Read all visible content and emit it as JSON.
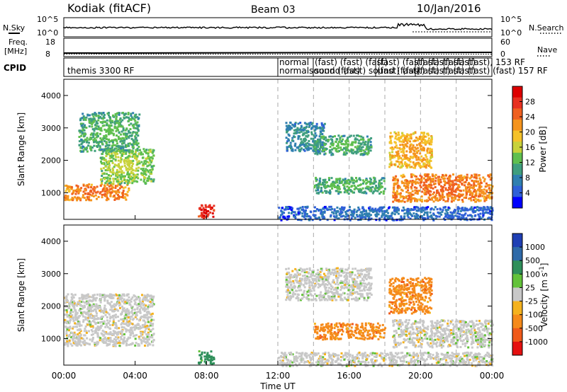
{
  "header": {
    "station": "Kodiak (fitACF)",
    "beam": "Beam 03",
    "date": "10/Jan/2016"
  },
  "noise_panel": {
    "left_label": "N.Sky",
    "right_label": "N.Search",
    "left_ticks": [
      "10^5",
      "10^0"
    ],
    "right_ticks": [
      "10^5",
      "10^0"
    ]
  },
  "freq_panel": {
    "left_label_lines": [
      "Freq.",
      "[MHz]"
    ],
    "right_label": "Nave",
    "left_ticks": [
      "18",
      "8"
    ],
    "right_ticks": [
      "60",
      "0"
    ]
  },
  "cpid_panel": {
    "label": "CPID",
    "segments": [
      {
        "text": "themis 3300 RF"
      },
      {
        "text": "normal"
      },
      {
        "text": "normalsound (fast)"
      },
      {
        "text": "(fast) (fast) (fast)"
      },
      {
        "text": "sound (fast) sound (fast)"
      },
      {
        "text": "(fast) (fast) (fast) (fast)"
      },
      {
        "text": "(fast) (fast) (fast) (fast)"
      },
      {
        "text": "(fast) (fast) (fast), 153 RF"
      },
      {
        "text": "(fast) (fast) (fast) (fast) 157 RF"
      }
    ]
  },
  "time_axis": {
    "label": "Time UT",
    "ticks": [
      "00:00",
      "04:00",
      "08:00",
      "12:00",
      "16:00",
      "20:00",
      "00:00"
    ]
  },
  "chart_data": [
    {
      "type": "heatmap",
      "title": "Power",
      "xlabel": "Time UT",
      "ylabel": "Slant Range [km]",
      "x_ticks": [
        "00:00",
        "04:00",
        "08:00",
        "12:00",
        "16:00",
        "20:00",
        "00:00"
      ],
      "y_ticks": [
        1000,
        2000,
        3000,
        4000
      ],
      "xlim_hours": [
        0,
        24
      ],
      "ylim_km": [
        180,
        4500
      ],
      "colorbar": {
        "label": "Power [dB]",
        "ticks": [
          "4",
          "8",
          "12",
          "16",
          "20",
          "24",
          "28"
        ],
        "colors": [
          "#0000ff",
          "#2e5fd8",
          "#2f7fb0",
          "#3f9e7e",
          "#5fbf4f",
          "#c8d23a",
          "#f5c22a",
          "#f5941d",
          "#f06020",
          "#e83020",
          "#dd0000"
        ]
      },
      "features": [
        {
          "hours": [
            0.0,
            3.6
          ],
          "range_km": [
            800,
            1300
          ],
          "power_db": 24
        },
        {
          "hours": [
            2.0,
            5.0
          ],
          "range_km": [
            1300,
            2400
          ],
          "power_db": 14
        },
        {
          "hours": [
            0.8,
            4.2
          ],
          "range_km": [
            2300,
            3500
          ],
          "power_db": 12
        },
        {
          "hours": [
            7.5,
            8.4
          ],
          "range_km": [
            250,
            650
          ],
          "power_db": 28
        },
        {
          "hours": [
            12.4,
            14.6
          ],
          "range_km": [
            2300,
            3200
          ],
          "power_db": 10
        },
        {
          "hours": [
            14.0,
            18.0
          ],
          "range_km": [
            1000,
            1500
          ],
          "power_db": 12
        },
        {
          "hours": [
            14.0,
            17.2
          ],
          "range_km": [
            2200,
            2800
          ],
          "power_db": 12
        },
        {
          "hours": [
            18.2,
            20.6
          ],
          "range_km": [
            1800,
            2900
          ],
          "power_db": 20
        },
        {
          "hours": [
            18.4,
            24.0
          ],
          "range_km": [
            750,
            1600
          ],
          "power_db": 24
        },
        {
          "hours": [
            12.0,
            24.0
          ],
          "range_km": [
            180,
            600
          ],
          "power_db": 8
        }
      ]
    },
    {
      "type": "heatmap",
      "title": "Velocity",
      "xlabel": "Time UT",
      "ylabel": "Slant Range [km]",
      "x_ticks": [
        "00:00",
        "04:00",
        "08:00",
        "12:00",
        "16:00",
        "20:00",
        "00:00"
      ],
      "y_ticks": [
        1000,
        2000,
        3000,
        4000
      ],
      "xlim_hours": [
        0,
        24
      ],
      "ylim_km": [
        180,
        4500
      ],
      "colorbar": {
        "label": "Velocity [m s^-1]",
        "ticks": [
          "1000",
          "500",
          "100",
          "25",
          "-25",
          "-100",
          "-500",
          "-1000"
        ],
        "colors": [
          "#1f3fb4",
          "#2f6aa8",
          "#2f8f5a",
          "#63c23a",
          "#c8c8c8",
          "#f5b21e",
          "#f58a1a",
          "#f05a1a",
          "#e51010"
        ]
      },
      "features": [
        {
          "hours": [
            0.0,
            5.0
          ],
          "range_km": [
            800,
            2400
          ],
          "velocity_ms": 0
        },
        {
          "hours": [
            7.5,
            8.4
          ],
          "range_km": [
            250,
            650
          ],
          "velocity_ms": 100
        },
        {
          "hours": [
            12.4,
            17.2
          ],
          "range_km": [
            2200,
            3200
          ],
          "velocity_ms": 0
        },
        {
          "hours": [
            14.0,
            18.0
          ],
          "range_km": [
            1000,
            1500
          ],
          "velocity_ms": -300
        },
        {
          "hours": [
            18.2,
            20.6
          ],
          "range_km": [
            1800,
            2900
          ],
          "velocity_ms": -300
        },
        {
          "hours": [
            18.4,
            24.0
          ],
          "range_km": [
            750,
            1600
          ],
          "velocity_ms": 0
        },
        {
          "hours": [
            12.0,
            24.0
          ],
          "range_km": [
            180,
            600
          ],
          "velocity_ms": 0
        }
      ]
    }
  ]
}
